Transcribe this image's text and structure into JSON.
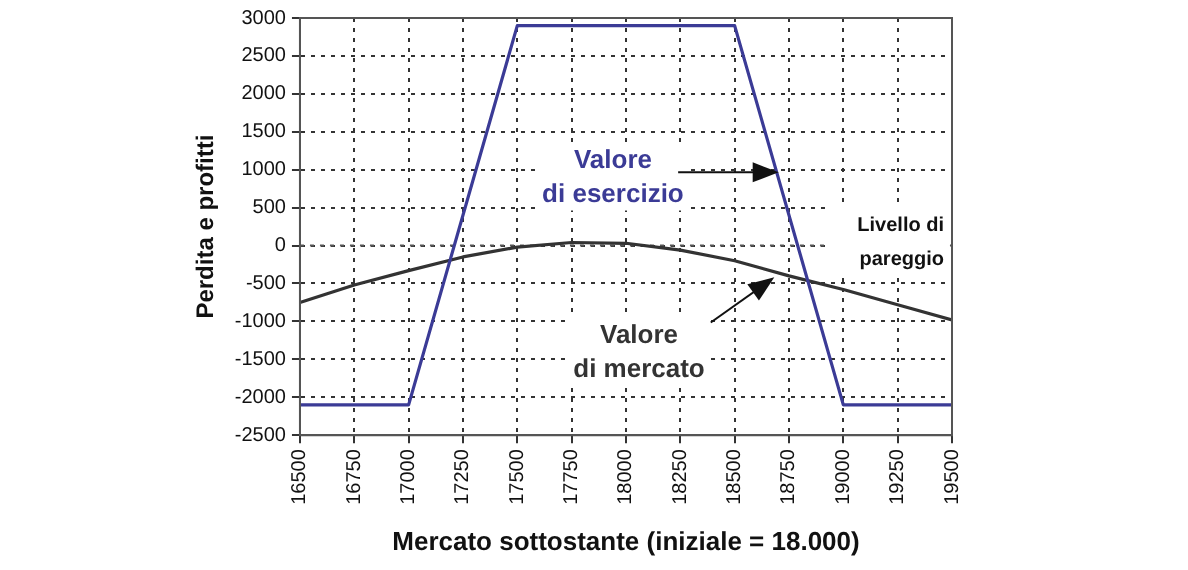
{
  "chart_data": {
    "type": "line",
    "xlabel": "Mercato sottostante (iniziale = 18.000)",
    "ylabel": "Perdita e profitti",
    "xlim": [
      16500,
      19500
    ],
    "xticks": [
      16500,
      16750,
      17000,
      17250,
      17500,
      17750,
      18000,
      18250,
      18500,
      18750,
      19000,
      19250,
      19500
    ],
    "ylim": [
      -2500,
      3000
    ],
    "yticks": [
      -2500,
      -2000,
      -1500,
      -1000,
      -500,
      0,
      500,
      1000,
      1500,
      2000,
      2500,
      3000
    ],
    "grid": true,
    "legend": false,
    "marker": "none",
    "series": [
      {
        "name": "Valore di esercizio",
        "color": "#3b3b96",
        "x": [
          16500,
          17000,
          17500,
          18500,
          19000,
          19500
        ],
        "values": [
          -2100,
          -2100,
          2900,
          2900,
          -2100,
          -2100
        ]
      },
      {
        "name": "Valore di mercato",
        "color": "#333333",
        "x": [
          16500,
          16750,
          17000,
          17250,
          17500,
          17750,
          18000,
          18250,
          18500,
          18750,
          19000,
          19250,
          19500
        ],
        "values": [
          -750,
          -520,
          -330,
          -150,
          -20,
          40,
          30,
          -60,
          -200,
          -400,
          -580,
          -780,
          -980
        ]
      }
    ],
    "ref_lines": [
      {
        "axis": "y",
        "value": 0,
        "label": "Livello di pareggio"
      }
    ]
  }
}
